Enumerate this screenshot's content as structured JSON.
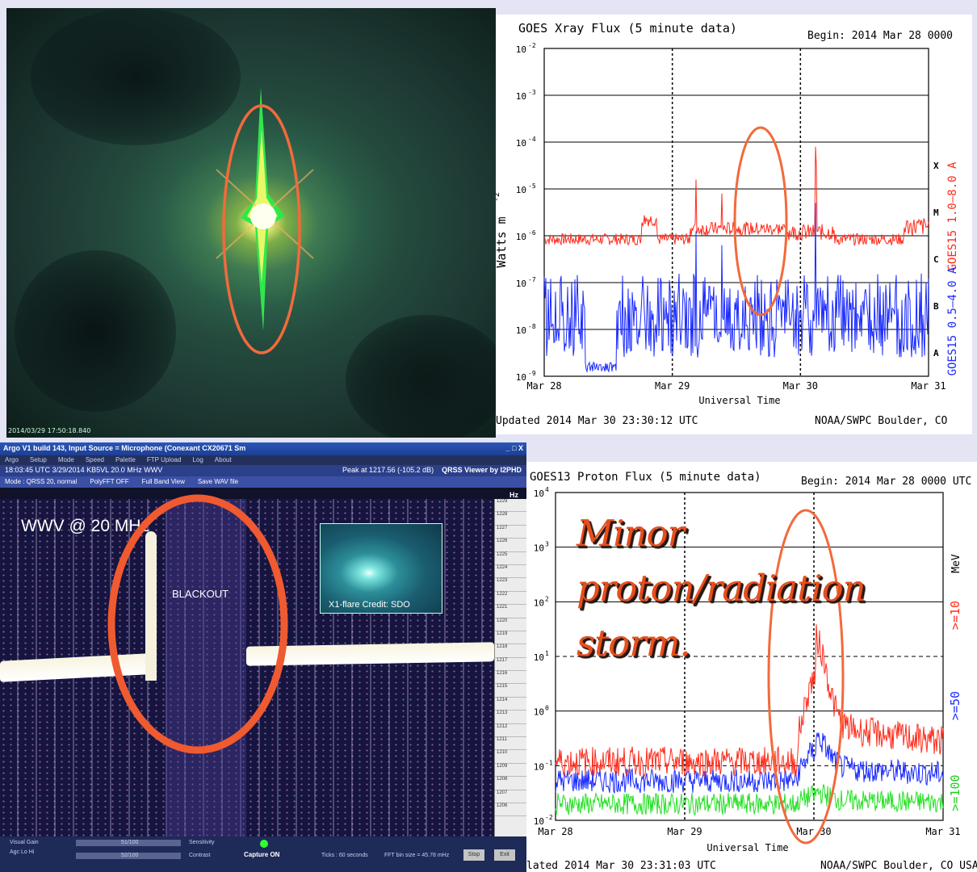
{
  "sun_image": {
    "timestamp": "2014/03/29 17:50:18.840"
  },
  "xray": {
    "title": "GOES Xray Flux (5 minute data)",
    "begin": "Begin:  2014 Mar 28 0000",
    "ylabel": "Watts m",
    "ylabel_sup": "-2",
    "xlabel": "Universal Time",
    "updated": "Updated 2014 Mar 30 23:30:12 UTC",
    "credit": "NOAA/SWPC Boulder, CO",
    "right_label_1": "GOES15 1.0–8.0 A",
    "right_label_2": "GOES15 0.5–4.0 A",
    "classes": [
      "X",
      "M",
      "C",
      "B",
      "A"
    ],
    "xticks": [
      "Mar 28",
      "Mar 29",
      "Mar 30",
      "Mar 31"
    ],
    "yticks": [
      "10",
      "10",
      "10",
      "10",
      "10",
      "10",
      "10",
      "10"
    ],
    "yexp": [
      "-2",
      "-3",
      "-4",
      "-5",
      "-6",
      "-7",
      "-8",
      "-9"
    ]
  },
  "proton": {
    "title": "GOES13 Proton Flux (5 minute data)",
    "begin": "Begin: 2014 Mar 28 0000 UTC",
    "xlabel": "Universal Time",
    "updated": "lated 2014 Mar 30 23:31:03 UTC",
    "credit": "NOAA/SWPC Boulder, CO USA",
    "unit": "MeV",
    "ch1": ">=10",
    "ch2": ">=50",
    "ch3": ">=100",
    "xticks": [
      "Mar 28",
      "Mar 29",
      "Mar 30",
      "Mar 31"
    ],
    "yticks": [
      "10",
      "10",
      "10",
      "10",
      "10",
      "10",
      "10"
    ],
    "yexp": [
      "4",
      "3",
      "2",
      "1",
      "0",
      "-1",
      "-2"
    ],
    "overlay": [
      "Minor",
      "proton/radiation",
      "storm."
    ]
  },
  "argo": {
    "title": "Argo V1 build 143, Input Source = Microphone (Conexant CX20671 Sm",
    "win_controls": "_ □ X",
    "menu": [
      "Argo",
      "Setup",
      "Mode",
      "Speed",
      "Palette",
      "FTP Upload",
      "Log",
      "About"
    ],
    "time": "18:03:45 UTC  3/29/2014   KB5VL 20.0 MHz WWV",
    "peak": "Peak at  1217.56 (-105.2 dB)",
    "viewer": "QRSS Viewer by I2PHD",
    "mode": "Mode : QRSS 20, normal",
    "polyfft": "PolyFFT OFF",
    "fullband": "Full Band View",
    "save": "Save WAV file",
    "hz_label": "Hz",
    "wwv_label": "WWV @ 20 MHz",
    "blackout_label": "BLACKOUT",
    "inset_caption": "X1-flare  Credit: SDO",
    "hz_ticks": [
      "1229",
      "1228",
      "1227",
      "1226",
      "1225",
      "1224",
      "1223",
      "1222",
      "1221",
      "1220",
      "1219",
      "1218",
      "1217",
      "1216",
      "1215",
      "1214",
      "1213",
      "1212",
      "1211",
      "1210",
      "1209",
      "1208",
      "1207",
      "1206"
    ],
    "visual_gain": "Visual Gain",
    "agc": "Agc  Lo  Hi",
    "gain_a": "51/100",
    "gain_b": "52/100",
    "sensitivity": "Sensitivity",
    "contrast": "Contrast",
    "capture": "Capture ON",
    "ticks": "Ticks : 60 seconds",
    "fft": "FFT bin size = 45.78 mHz",
    "stop": "Stop",
    "exit": "Exit"
  },
  "colors": {
    "long": "#ff2a1a",
    "short": "#1a2aff",
    "green": "#22e022",
    "ellipse": "#f26a3c"
  }
}
